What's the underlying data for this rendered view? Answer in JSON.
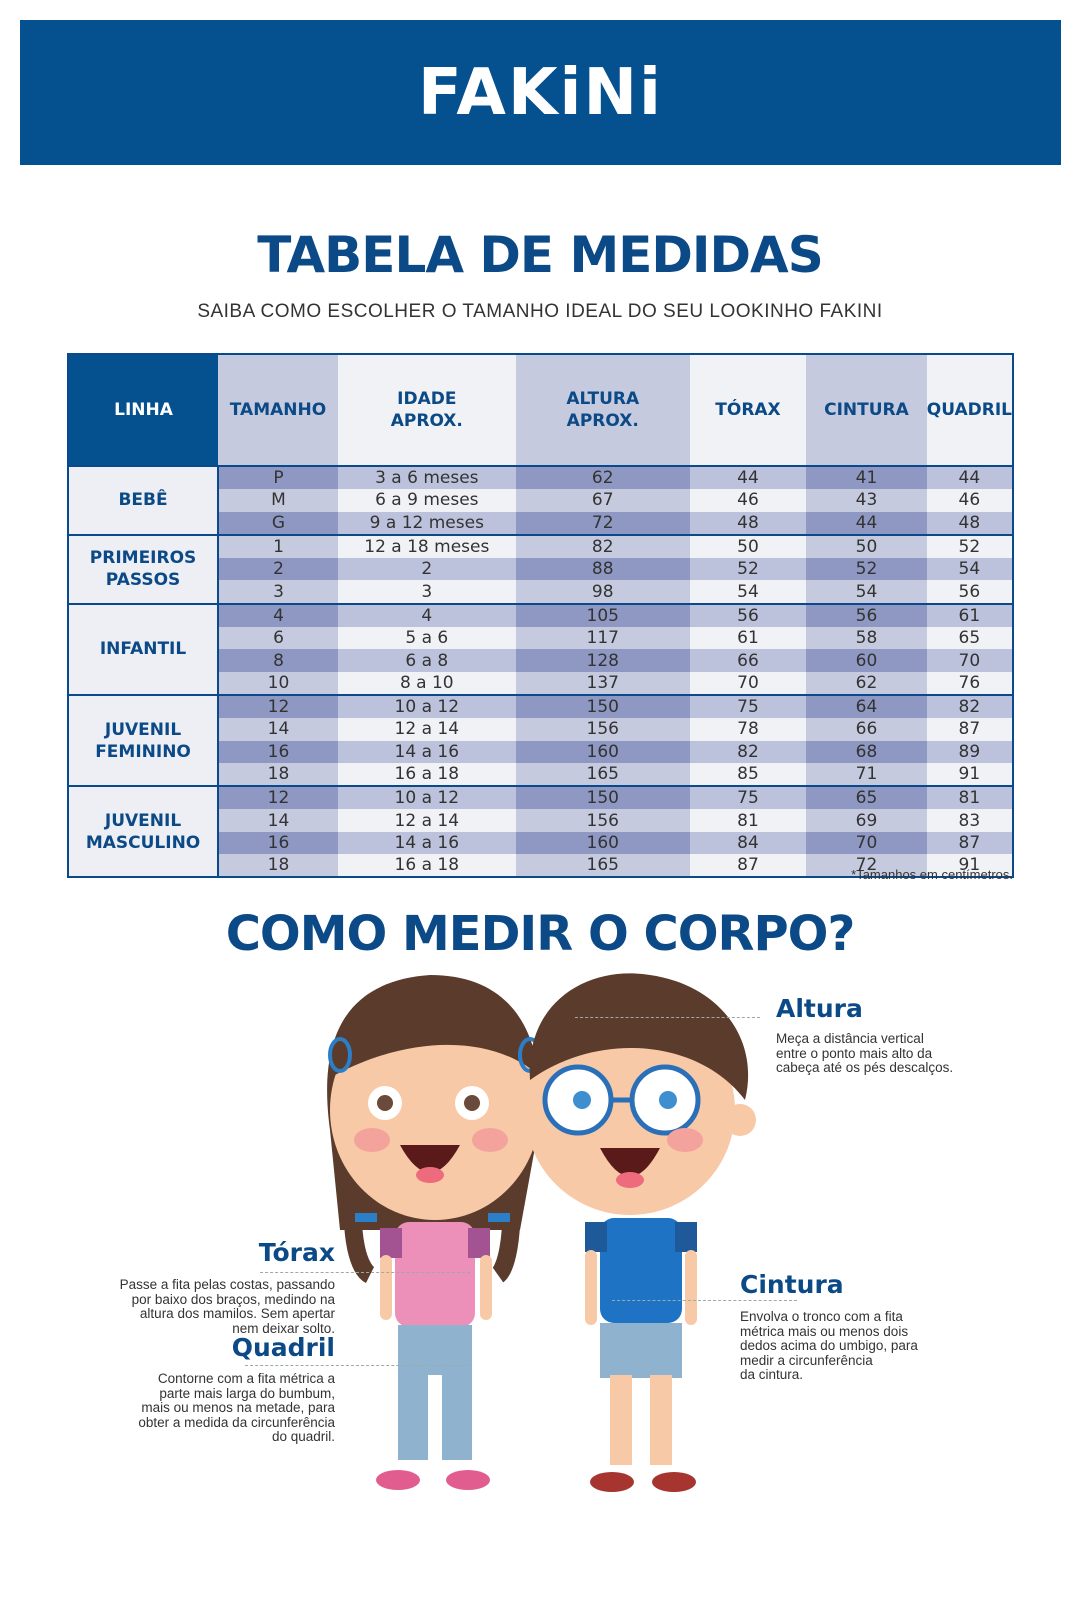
{
  "brand": "FAKiNi",
  "title": "TABELA DE MEDIDAS",
  "subtitle": "SAIBA COMO ESCOLHER O TAMANHO IDEAL DO SEU LOOKINHO FAKINI",
  "table": {
    "headers": [
      "LINHA",
      "TAMANHO",
      "IDADE APROX.",
      "ALTURA APROX.",
      "TÓRAX",
      "CINTURA",
      "QUADRIL"
    ],
    "groups": [
      {
        "name": "BEBÊ",
        "rows": [
          [
            "P",
            "3 a 6 meses",
            "62",
            "44",
            "41",
            "44"
          ],
          [
            "M",
            "6 a 9 meses",
            "67",
            "46",
            "43",
            "46"
          ],
          [
            "G",
            "9 a 12 meses",
            "72",
            "48",
            "44",
            "48"
          ]
        ]
      },
      {
        "name": "PRIMEIROS PASSOS",
        "rows": [
          [
            "1",
            "12 a 18 meses",
            "82",
            "50",
            "50",
            "52"
          ],
          [
            "2",
            "2",
            "88",
            "52",
            "52",
            "54"
          ],
          [
            "3",
            "3",
            "98",
            "54",
            "54",
            "56"
          ]
        ]
      },
      {
        "name": "INFANTIL",
        "rows": [
          [
            "4",
            "4",
            "105",
            "56",
            "56",
            "61"
          ],
          [
            "6",
            "5 a 6",
            "117",
            "61",
            "58",
            "65"
          ],
          [
            "8",
            "6 a 8",
            "128",
            "66",
            "60",
            "70"
          ],
          [
            "10",
            "8 a 10",
            "137",
            "70",
            "62",
            "76"
          ]
        ]
      },
      {
        "name": "JUVENIL FEMININO",
        "rows": [
          [
            "12",
            "10 a 12",
            "150",
            "75",
            "64",
            "82"
          ],
          [
            "14",
            "12 a 14",
            "156",
            "78",
            "66",
            "87"
          ],
          [
            "16",
            "14 a 16",
            "160",
            "82",
            "68",
            "89"
          ],
          [
            "18",
            "16 a 18",
            "165",
            "85",
            "71",
            "91"
          ]
        ]
      },
      {
        "name": "JUVENIL MASCULINO",
        "rows": [
          [
            "12",
            "10 a 12",
            "150",
            "75",
            "65",
            "81"
          ],
          [
            "14",
            "12 a 14",
            "156",
            "81",
            "69",
            "83"
          ],
          [
            "16",
            "14 a 16",
            "160",
            "84",
            "70",
            "87"
          ],
          [
            "18",
            "16 a 18",
            "165",
            "87",
            "72",
            "91"
          ]
        ]
      }
    ],
    "note": "*Tamanhos em centímetros."
  },
  "how_to": {
    "title": "COMO MEDIR O CORPO?",
    "altura": {
      "title": "Altura",
      "text": [
        "Meça a distância vertical",
        "entre o ponto mais alto da",
        "cabeça até os pés descalços."
      ]
    },
    "torax": {
      "title": "Tórax",
      "text": [
        "Passe a fita pelas costas, passando",
        "por baixo dos braços, medindo na",
        "altura dos mamilos. Sem apertar",
        "nem deixar solto."
      ]
    },
    "quadril": {
      "title": "Quadril",
      "text": [
        "Contorne com a fita métrica a",
        "parte mais larga do bumbum,",
        "mais ou menos na metade, para",
        "obter a medida da circunferência",
        "do quadril."
      ]
    },
    "cintura": {
      "title": "Cintura",
      "text": [
        "Envolva o tronco com a fita",
        "métrica mais ou menos dois",
        "dedos acima do umbigo, para",
        "medir a  circunferência",
        "da cintura."
      ]
    }
  },
  "colors": {
    "brand_blue": "#05508f",
    "heading_blue": "#0b4a86"
  }
}
